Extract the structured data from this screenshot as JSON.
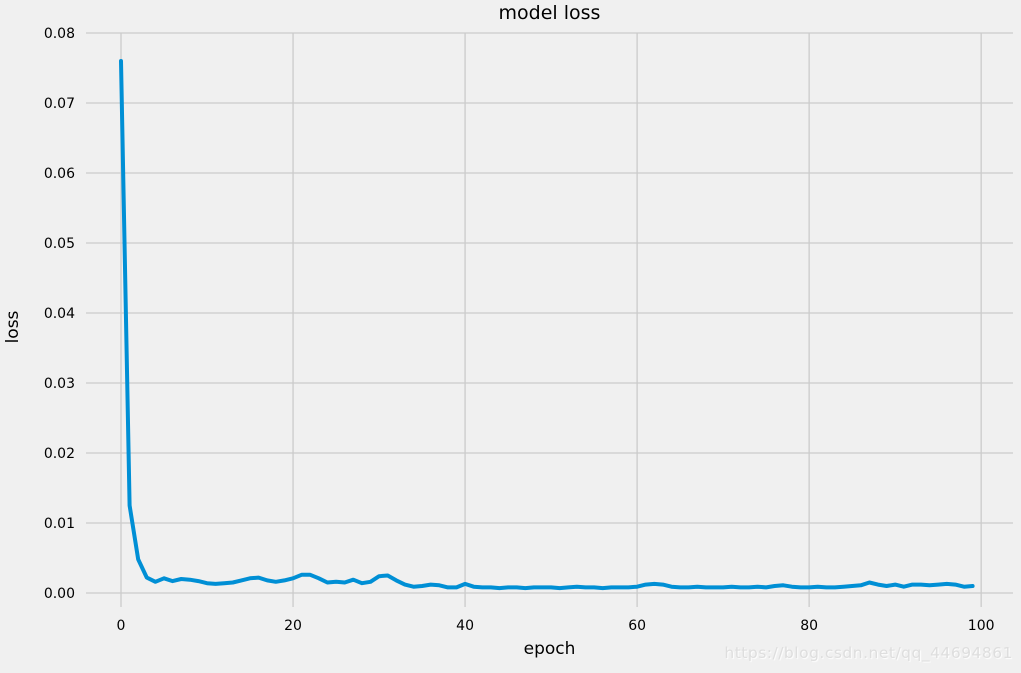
{
  "figure": {
    "background_color": "#f0f0f0",
    "style": "fivethirtyeight"
  },
  "watermark": {
    "text": "https://blog.csdn.net/qq_44694861",
    "color": "#dedede"
  },
  "chart_data": {
    "type": "line",
    "title": "model loss",
    "xlabel": "epoch",
    "ylabel": "loss",
    "xlim": [
      -4.07,
      103.7
    ],
    "ylim": [
      -0.002,
      0.08
    ],
    "xtick_values": [
      0,
      20,
      40,
      60,
      80,
      100
    ],
    "xtick_labels": [
      "0",
      "20",
      "40",
      "60",
      "80",
      "100"
    ],
    "ytick_values": [
      0.0,
      0.01,
      0.02,
      0.03,
      0.04,
      0.05,
      0.06,
      0.07,
      0.08
    ],
    "ytick_labels": [
      "0.00",
      "0.01",
      "0.02",
      "0.03",
      "0.04",
      "0.05",
      "0.06",
      "0.07",
      "0.08"
    ],
    "grid": true,
    "grid_color": "#cbcbcb",
    "legend_position": "none",
    "line_color": "#008fd5",
    "line_width": 4,
    "series": [
      {
        "name": "loss",
        "x_start": 0,
        "x_step": 1,
        "values": [
          0.076,
          0.0125,
          0.0048,
          0.0022,
          0.0016,
          0.0021,
          0.0017,
          0.002,
          0.0019,
          0.0017,
          0.0014,
          0.0013,
          0.0014,
          0.0015,
          0.0018,
          0.0021,
          0.0022,
          0.0018,
          0.0016,
          0.0018,
          0.0021,
          0.0026,
          0.0026,
          0.0021,
          0.0015,
          0.0016,
          0.0015,
          0.0019,
          0.0014,
          0.0016,
          0.0024,
          0.0025,
          0.0018,
          0.0012,
          0.0009,
          0.001,
          0.0012,
          0.0011,
          0.0008,
          0.0008,
          0.0013,
          0.0009,
          0.0008,
          0.0008,
          0.0007,
          0.0008,
          0.0008,
          0.0007,
          0.0008,
          0.0008,
          0.0008,
          0.0007,
          0.0008,
          0.0009,
          0.0008,
          0.0008,
          0.0007,
          0.0008,
          0.0008,
          0.0008,
          0.0009,
          0.0012,
          0.0013,
          0.0012,
          0.0009,
          0.0008,
          0.0008,
          0.0009,
          0.0008,
          0.0008,
          0.0008,
          0.0009,
          0.0008,
          0.0008,
          0.0009,
          0.0008,
          0.001,
          0.0011,
          0.0009,
          0.0008,
          0.0008,
          0.0009,
          0.0008,
          0.0008,
          0.0009,
          0.001,
          0.0011,
          0.0015,
          0.0012,
          0.001,
          0.0012,
          0.0009,
          0.0012,
          0.0012,
          0.0011,
          0.0012,
          0.0013,
          0.0012,
          0.0009,
          0.001
        ]
      }
    ]
  }
}
